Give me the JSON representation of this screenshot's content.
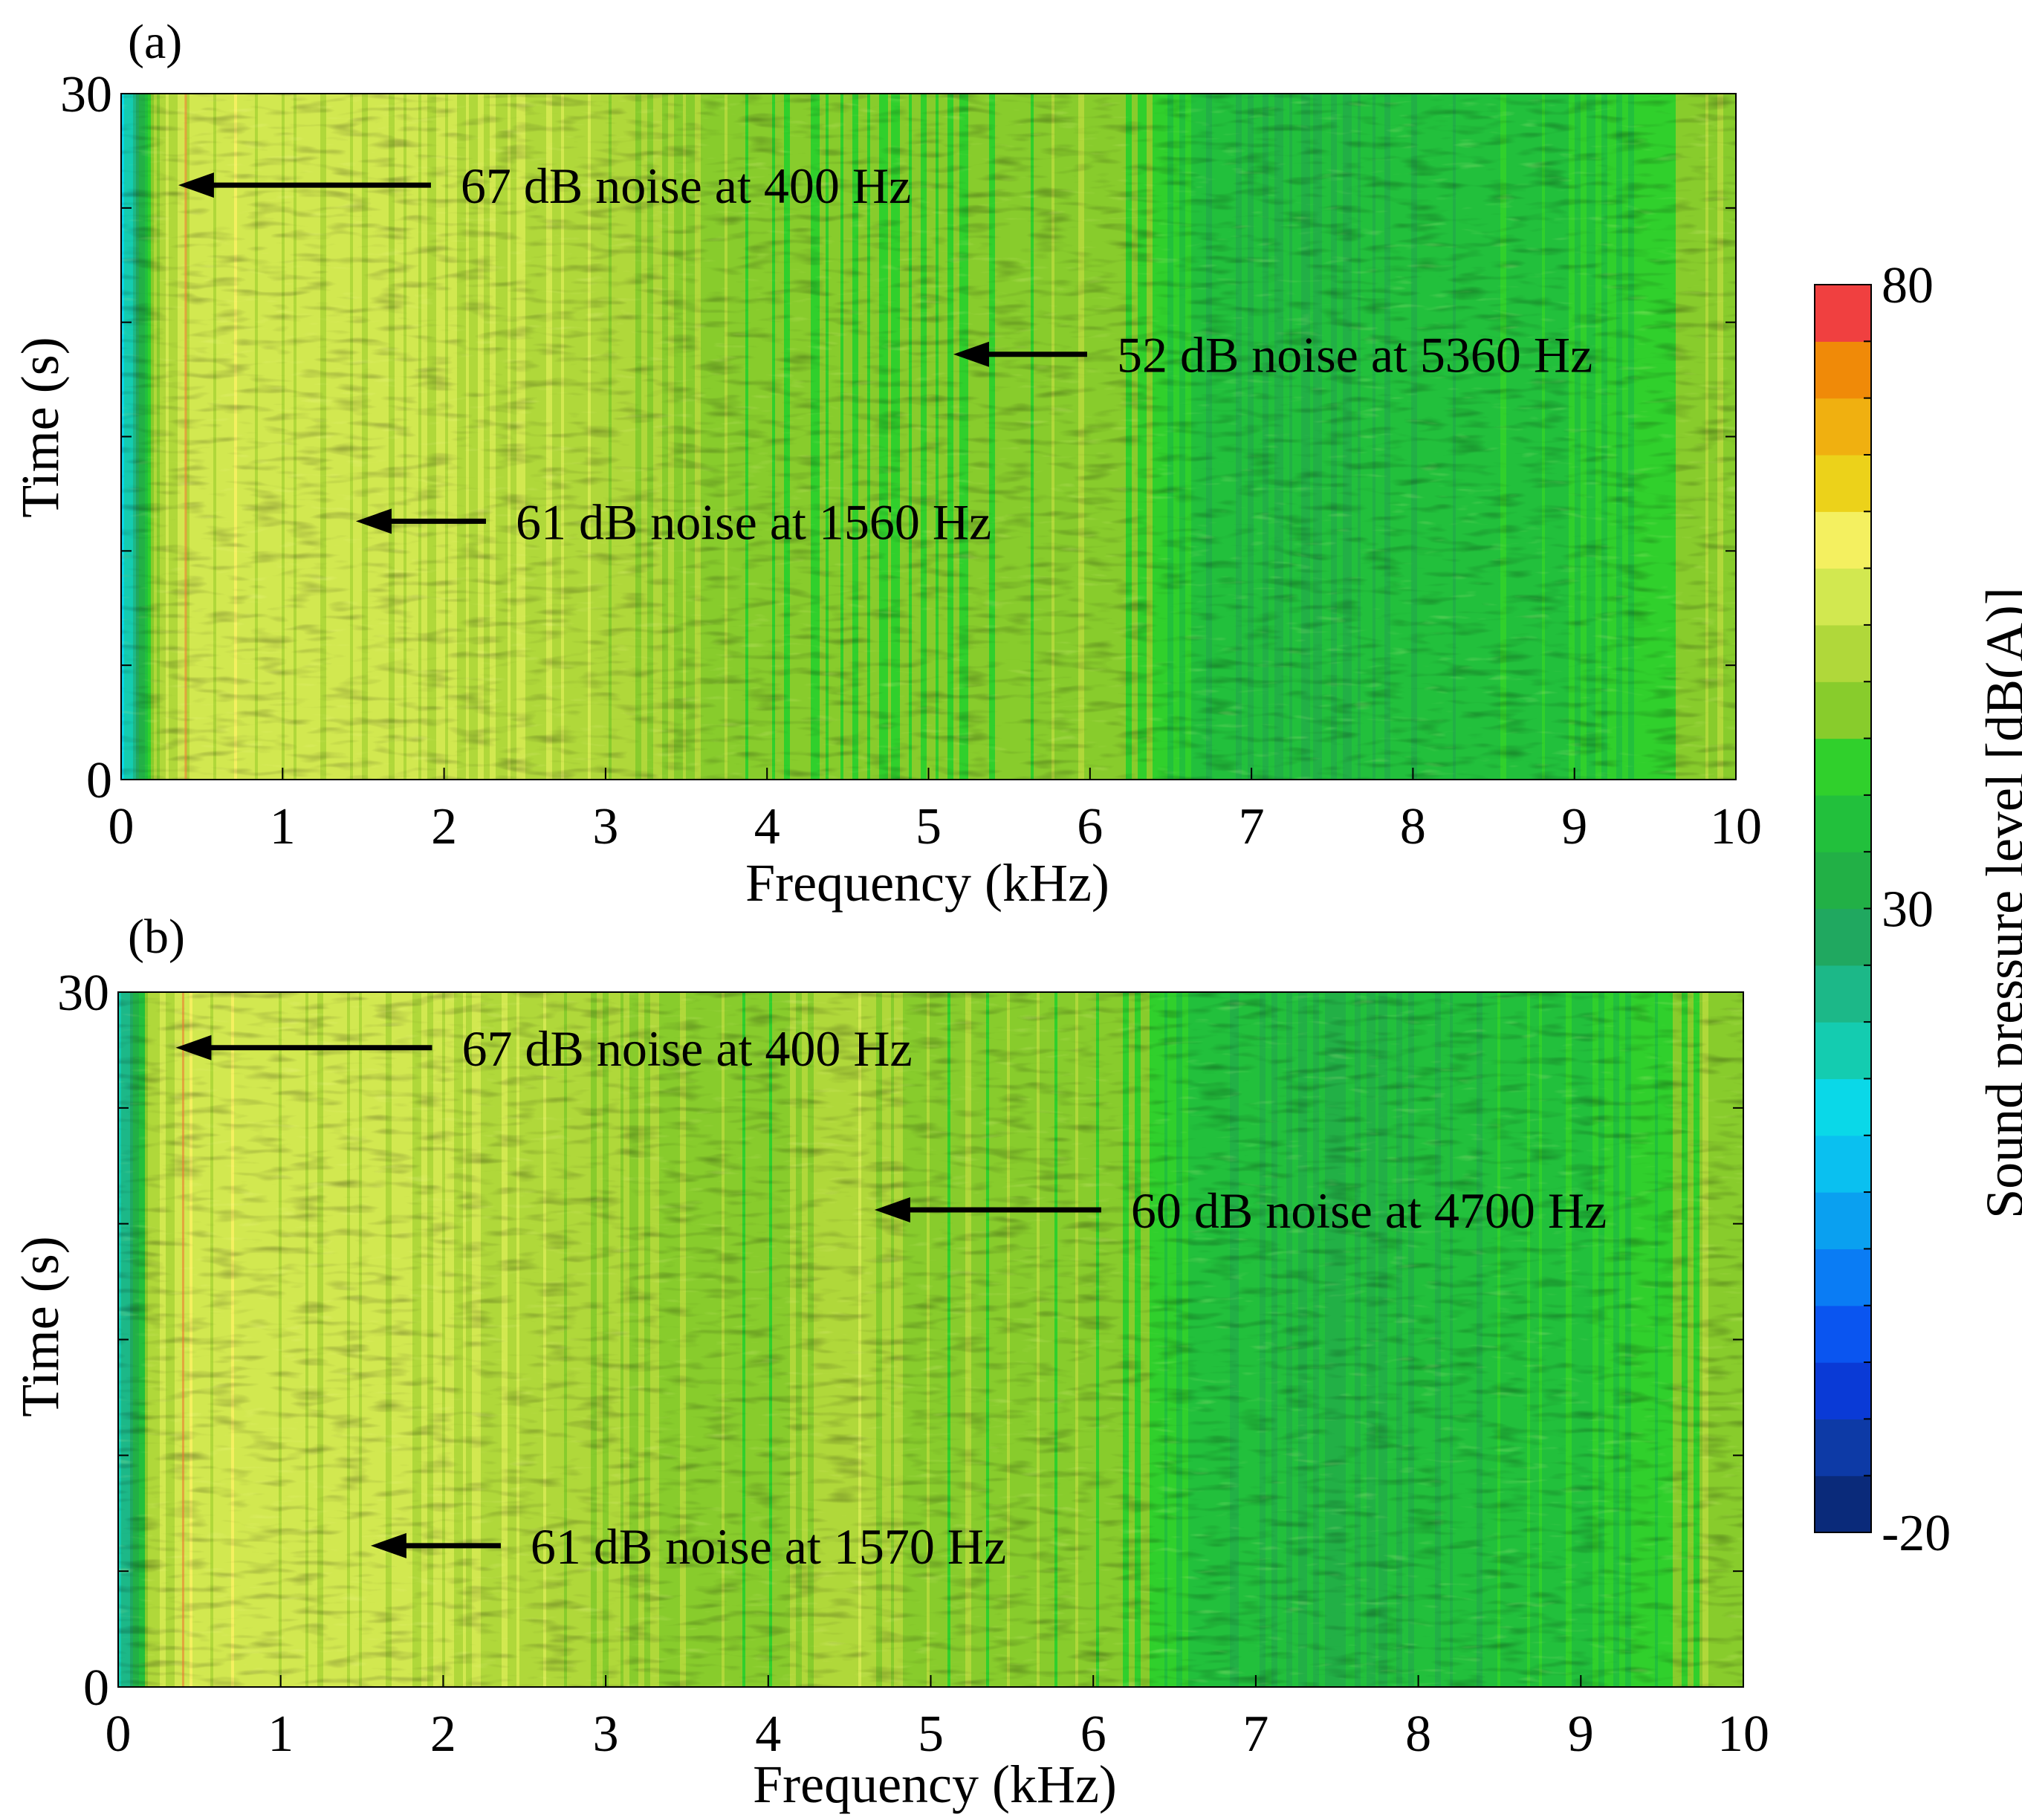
{
  "chart_data": {
    "type": "heatmap",
    "panels": [
      {
        "label": "(a)",
        "xlabel": "Frequency (kHz)",
        "ylabel": "Time (s)",
        "xlim": [
          0,
          10
        ],
        "ylim": [
          0,
          30
        ],
        "xticks": [
          0,
          1,
          2,
          3,
          4,
          5,
          6,
          7,
          8,
          9,
          10
        ],
        "yticks": [
          0,
          30
        ],
        "spectrum_profile": {
          "frequency_khz": [
            0,
            0.05,
            0.1,
            0.15,
            0.2,
            0.4,
            0.8,
            1.2,
            1.6,
            2.0,
            2.5,
            3.0,
            3.5,
            4.0,
            4.5,
            5.0,
            5.5,
            6.0,
            6.3,
            6.7,
            7.0,
            7.5,
            8.0,
            8.5,
            9.0,
            9.5,
            9.8,
            10.0
          ],
          "level_dba": [
            14,
            18,
            24,
            36,
            48,
            55,
            55,
            54,
            54,
            53,
            52,
            50,
            47,
            45,
            44,
            44,
            45,
            47,
            44,
            36,
            35,
            34,
            36,
            37,
            38,
            41,
            47,
            46
          ]
        },
        "annotations": [
          {
            "text": "67 dB noise at 400 Hz",
            "frequency_khz": 0.4,
            "time_s": 26
          },
          {
            "text": "52 dB noise at 5360 Hz",
            "frequency_khz": 5.2,
            "time_s": 18.6
          },
          {
            "text": "61 dB noise at 1560 Hz",
            "frequency_khz": 1.5,
            "time_s": 11.3
          }
        ]
      },
      {
        "label": "(b)",
        "xlabel": "Frequency (kHz)",
        "ylabel": "Time (s)",
        "xlim": [
          0,
          10
        ],
        "ylim": [
          0,
          30
        ],
        "xticks": [
          0,
          1,
          2,
          3,
          4,
          5,
          6,
          7,
          8,
          9,
          10
        ],
        "yticks": [
          0,
          30
        ],
        "spectrum_profile": {
          "frequency_khz": [
            0,
            0.05,
            0.1,
            0.15,
            0.2,
            0.4,
            0.8,
            1.2,
            1.6,
            2.0,
            2.5,
            3.0,
            3.5,
            4.0,
            4.5,
            5.0,
            5.5,
            6.0,
            6.3,
            6.7,
            7.0,
            7.5,
            8.0,
            8.5,
            9.0,
            9.5,
            9.8,
            10.0
          ],
          "level_dba": [
            16,
            22,
            30,
            40,
            50,
            55,
            55,
            54,
            54,
            53,
            51,
            49,
            47,
            45,
            52,
            46,
            46,
            46,
            43,
            36,
            35,
            34,
            35,
            37,
            38,
            41,
            47,
            46
          ]
        },
        "annotations": [
          {
            "text": "67 dB noise at 400 Hz",
            "frequency_khz": 0.4,
            "time_s": 27.6
          },
          {
            "text": "60 dB noise at 4700 Hz",
            "frequency_khz": 4.7,
            "time_s": 20.6
          },
          {
            "text": "61 dB noise at 1570 Hz",
            "frequency_khz": 1.6,
            "time_s": 6.1
          }
        ]
      }
    ],
    "colorbar": {
      "label": "Sound pressure level [dB(A)]",
      "min": -20,
      "max": 80,
      "tick_labels": [
        "80",
        "30",
        "-20"
      ],
      "tick_values": [
        80,
        30,
        -20
      ],
      "levels": 22,
      "colors": [
        "#0a2a7a",
        "#0d3aa6",
        "#0a3ad6",
        "#0a55f0",
        "#0a7cf4",
        "#0aa0f0",
        "#0ac0f0",
        "#0ad8e8",
        "#14ccb0",
        "#1cb888",
        "#20a860",
        "#22b046",
        "#22c03c",
        "#30d02c",
        "#88cc2c",
        "#b0d83a",
        "#d2e850",
        "#f4f060",
        "#ecd21a",
        "#f0b010",
        "#f08a08",
        "#f04040"
      ]
    }
  }
}
